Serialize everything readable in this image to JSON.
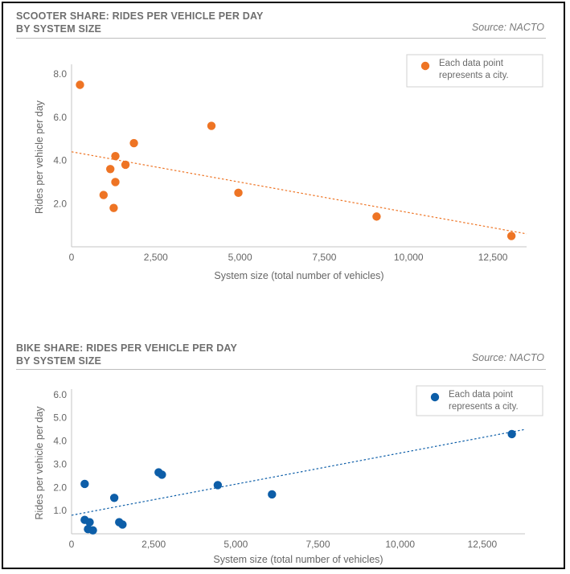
{
  "chart_data": [
    {
      "type": "scatter",
      "title": "SCOOTER SHARE: RIDES PER VEHICLE PER DAY BY SYSTEM SIZE",
      "title_lines": [
        "SCOOTER SHARE: RIDES PER VEHICLE PER DAY",
        "BY SYSTEM SIZE"
      ],
      "source": "Source: NACTO",
      "xlabel": "System size (total number of vehicles)",
      "ylabel": "Rides per vehicle per day",
      "xlim": [
        0,
        13500
      ],
      "ylim": [
        0,
        8.3
      ],
      "xticks": [
        0,
        2500,
        5000,
        7500,
        10000,
        12500
      ],
      "xtick_labels": [
        "0",
        "2,500",
        "5,000",
        "7,500",
        "10,000",
        "12,500"
      ],
      "yticks": [
        2,
        4,
        6,
        8
      ],
      "ytick_labels": [
        "2.0",
        "4.0",
        "6.0",
        "8.0"
      ],
      "color": "#ee7424",
      "legend": {
        "text_lines": [
          "Each data point",
          "represents a city."
        ],
        "position": "top-right"
      },
      "trendline": {
        "x": [
          0,
          13500
        ],
        "y": [
          4.4,
          0.6
        ],
        "style": "dotted"
      },
      "points": [
        {
          "x": 250,
          "y": 7.5
        },
        {
          "x": 950,
          "y": 2.4
        },
        {
          "x": 1150,
          "y": 3.6
        },
        {
          "x": 1250,
          "y": 1.8
        },
        {
          "x": 1300,
          "y": 3.0
        },
        {
          "x": 1300,
          "y": 4.2
        },
        {
          "x": 1600,
          "y": 3.8
        },
        {
          "x": 1850,
          "y": 4.8
        },
        {
          "x": 4150,
          "y": 5.6
        },
        {
          "x": 4950,
          "y": 2.5
        },
        {
          "x": 9050,
          "y": 1.4
        },
        {
          "x": 13050,
          "y": 0.5
        }
      ]
    },
    {
      "type": "scatter",
      "title": "BIKE SHARE: RIDES PER VEHICLE PER DAY BY SYSTEM SIZE",
      "title_lines": [
        "BIKE SHARE: RIDES PER VEHICLE PER DAY",
        "BY SYSTEM SIZE"
      ],
      "source": "Source: NACTO",
      "xlabel": "System size (total number of vehicles)",
      "ylabel": "Rides per vehicle per day",
      "xlim": [
        0,
        13800
      ],
      "ylim": [
        0,
        6.1
      ],
      "xticks": [
        0,
        2500,
        5000,
        7500,
        10000,
        12500
      ],
      "xtick_labels": [
        "0",
        "2,500",
        "5,000",
        "7,500",
        "10,000",
        "12,500"
      ],
      "yticks": [
        1,
        2,
        3,
        4,
        5,
        6
      ],
      "ytick_labels": [
        "1.0",
        "2.0",
        "3.0",
        "4.0",
        "5.0",
        "6.0"
      ],
      "color": "#0d5ea8",
      "legend": {
        "text_lines": [
          "Each data point",
          "represents a city."
        ],
        "position": "top-right"
      },
      "trendline": {
        "x": [
          0,
          13800
        ],
        "y": [
          0.8,
          4.5
        ],
        "style": "dotted"
      },
      "points": [
        {
          "x": 400,
          "y": 2.15
        },
        {
          "x": 400,
          "y": 0.6
        },
        {
          "x": 550,
          "y": 0.5
        },
        {
          "x": 500,
          "y": 0.2
        },
        {
          "x": 650,
          "y": 0.15
        },
        {
          "x": 1300,
          "y": 1.55
        },
        {
          "x": 1450,
          "y": 0.5
        },
        {
          "x": 1550,
          "y": 0.4
        },
        {
          "x": 2650,
          "y": 2.65
        },
        {
          "x": 2750,
          "y": 2.55
        },
        {
          "x": 4450,
          "y": 2.1
        },
        {
          "x": 6100,
          "y": 1.7
        },
        {
          "x": 13400,
          "y": 4.3
        }
      ]
    }
  ]
}
